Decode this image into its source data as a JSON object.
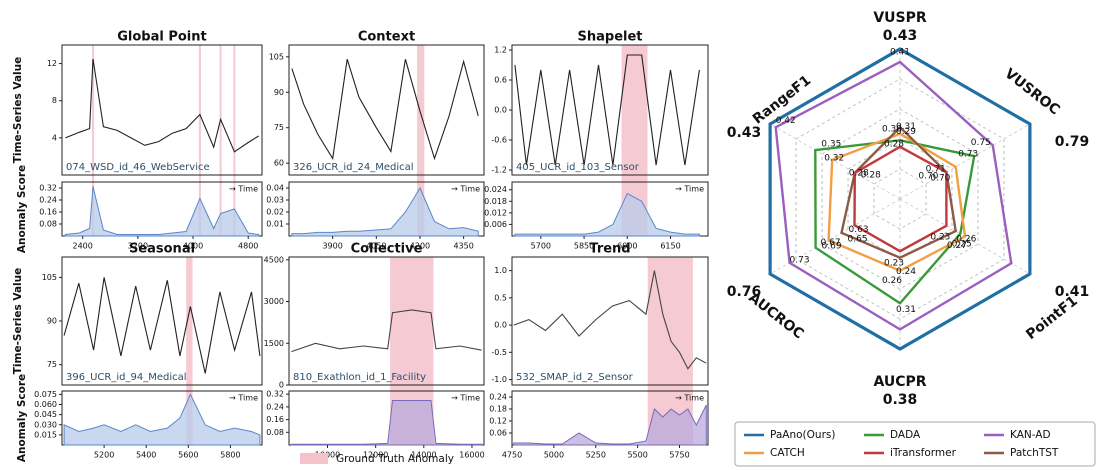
{
  "labels": {
    "series_axis": "Time-Series Value",
    "score_axis": "Anomaly Score",
    "time": "→ Time",
    "legend": "Ground Truth Anomaly"
  },
  "chart_data": [
    {
      "type": "line",
      "title": "Global Point",
      "dataset": "074_WSD_id_46_WebService",
      "x": [
        2150,
        2350,
        2500,
        2550,
        2700,
        2900,
        3100,
        3300,
        3500,
        3700,
        3900,
        4100,
        4300,
        4400,
        4600,
        4800,
        4950
      ],
      "values": [
        4,
        4.6,
        5,
        12.5,
        5.2,
        4.8,
        4,
        3.2,
        3.6,
        4.5,
        5,
        6.5,
        3,
        6,
        2.5,
        3.5,
        4.2
      ],
      "score_values": [
        0.01,
        0.02,
        0.05,
        0.33,
        0.04,
        0.01,
        0.01,
        0.01,
        0.01,
        0.02,
        0.03,
        0.25,
        0.05,
        0.15,
        0.18,
        0.02,
        0.01
      ],
      "xlim": [
        2100,
        5000
      ],
      "xticks": [
        2400,
        3200,
        4000,
        4800
      ],
      "ylim": [
        0,
        14
      ],
      "yticks": [
        4,
        8,
        12
      ],
      "score_ylim": [
        0,
        0.36
      ],
      "score_yticks": [
        0.08,
        0.16,
        0.24,
        0.32
      ],
      "anomalies": [
        [
          2535,
          2565
        ],
        [
          4085,
          4115
        ],
        [
          4385,
          4415
        ],
        [
          4585,
          4615
        ]
      ],
      "color": "#222222",
      "score_color": "#5b87c9",
      "score_fill": "#b7cbe9",
      "anomaly_color": "#f5c1cb"
    },
    {
      "type": "line",
      "title": "Context",
      "dataset": "326_UCR_id_24_Medical",
      "x": [
        3760,
        3800,
        3850,
        3900,
        3950,
        3990,
        4050,
        4100,
        4150,
        4200,
        4250,
        4300,
        4350,
        4400
      ],
      "values": [
        100,
        85,
        72,
        62,
        104,
        88,
        75,
        65,
        104,
        82,
        62,
        80,
        103,
        80
      ],
      "score_values": [
        0.002,
        0.002,
        0.003,
        0.003,
        0.004,
        0.004,
        0.005,
        0.006,
        0.02,
        0.04,
        0.012,
        0.006,
        0.007,
        0.004
      ],
      "xlim": [
        3750,
        4420
      ],
      "xticks": [
        3900,
        4050,
        4200,
        4350
      ],
      "ylim": [
        55,
        110
      ],
      "yticks": [
        60,
        75,
        90,
        105
      ],
      "score_ylim": [
        0,
        0.045
      ],
      "score_yticks": [
        0.01,
        0.02,
        0.03,
        0.04
      ],
      "anomalies": [
        [
          4190,
          4215
        ]
      ],
      "color": "#222222",
      "score_color": "#5b87c9",
      "score_fill": "#b7cbe9",
      "anomaly_color": "#f5c1cb"
    },
    {
      "type": "line",
      "title": "Shapelet",
      "dataset": "405_UCR_id_103_Sensor",
      "x": [
        5610,
        5650,
        5700,
        5750,
        5800,
        5850,
        5900,
        5950,
        6000,
        6050,
        6100,
        6150,
        6200,
        6250
      ],
      "values": [
        0.9,
        -1.1,
        0.8,
        -1.1,
        0.8,
        -1.1,
        0.9,
        -1.1,
        1.1,
        1.1,
        -1.1,
        0.8,
        -1.1,
        0.8
      ],
      "score_values": [
        0.001,
        0.001,
        0.001,
        0.001,
        0.001,
        0.001,
        0.002,
        0.006,
        0.022,
        0.018,
        0.004,
        0.002,
        0.001,
        0.001
      ],
      "xlim": [
        5600,
        6280
      ],
      "xticks": [
        5700,
        5850,
        6000,
        6150
      ],
      "ylim": [
        -1.3,
        1.3
      ],
      "yticks": [
        -1.2,
        -0.6,
        {
          "value": 0,
          "label": "0.0"
        },
        0.6,
        1.2
      ],
      "score_ylim": [
        0,
        0.028
      ],
      "score_yticks": [
        0.006,
        0.012,
        0.018,
        0.024
      ],
      "anomalies": [
        [
          5980,
          6070
        ]
      ],
      "color": "#222222",
      "score_color": "#5b87c9",
      "score_fill": "#b7cbe9",
      "anomaly_color": "#f5c1cb"
    },
    {
      "type": "line",
      "title": "Seasonal",
      "dataset": "396_UCR_id_94_Medical",
      "x": [
        5010,
        5080,
        5150,
        5200,
        5280,
        5350,
        5420,
        5500,
        5560,
        5610,
        5680,
        5750,
        5820,
        5900,
        5940
      ],
      "values": [
        85,
        103,
        80,
        105,
        78,
        102,
        80,
        104,
        78,
        95,
        72,
        100,
        80,
        100,
        78
      ],
      "score_values": [
        0.03,
        0.02,
        0.025,
        0.03,
        0.02,
        0.03,
        0.02,
        0.025,
        0.04,
        0.075,
        0.03,
        0.02,
        0.025,
        0.02,
        0.015
      ],
      "xlim": [
        5000,
        5950
      ],
      "xticks": [
        5200,
        5400,
        5600,
        5800
      ],
      "ylim": [
        68,
        112
      ],
      "yticks": [
        75,
        90,
        105
      ],
      "score_ylim": [
        0,
        0.08
      ],
      "score_yticks": [
        0.015,
        {
          "value": 0.03,
          "label": "0.030"
        },
        0.045,
        {
          "value": 0.06,
          "label": "0.060"
        },
        0.075
      ],
      "anomalies": [
        [
          5590,
          5620
        ]
      ],
      "color": "#222222",
      "score_color": "#5b87c9",
      "score_fill": "#b7cbe9",
      "anomaly_color": "#f5c1cb"
    },
    {
      "type": "line",
      "title": "Collective",
      "dataset": "810_Exathlon_id_1_Facility",
      "x": [
        8500,
        9500,
        10500,
        11500,
        12500,
        12700,
        13500,
        14300,
        14500,
        15500,
        16400
      ],
      "values": [
        1200,
        1500,
        1300,
        1400,
        1300,
        2600,
        2700,
        2600,
        1300,
        1400,
        1250
      ],
      "score_values": [
        0.005,
        0.005,
        0.005,
        0.005,
        0.01,
        0.28,
        0.28,
        0.28,
        0.01,
        0.005,
        0.005
      ],
      "xlim": [
        8400,
        16500
      ],
      "xticks": [
        10000,
        12000,
        14000,
        16000
      ],
      "ylim": [
        0,
        4600
      ],
      "yticks": [
        0,
        1500,
        3000,
        4500
      ],
      "score_ylim": [
        0,
        0.34
      ],
      "score_yticks": [
        0.08,
        0.16,
        0.24,
        0.32
      ],
      "anomalies": [
        [
          12600,
          14400
        ]
      ],
      "color": "#444444",
      "score_color": "#7a68b8",
      "score_fill": "#b9a9dc",
      "anomaly_color": "#f5c1cb"
    },
    {
      "type": "line",
      "title": "Trend",
      "dataset": "532_SMAP_id_2_Sensor",
      "x": [
        4760,
        4850,
        4950,
        5050,
        5150,
        5250,
        5350,
        5450,
        5550,
        5600,
        5650,
        5700,
        5750,
        5800,
        5850,
        5910
      ],
      "values": [
        0.0,
        0.1,
        -0.1,
        0.2,
        -0.2,
        0.1,
        0.35,
        0.45,
        0.2,
        1.0,
        0.2,
        -0.3,
        -0.5,
        -0.8,
        -0.6,
        -0.7
      ],
      "score_values": [
        0.01,
        0.01,
        0.005,
        0.005,
        0.06,
        0.01,
        0.005,
        0.005,
        0.02,
        0.18,
        0.14,
        0.18,
        0.15,
        0.18,
        0.1,
        0.2
      ],
      "xlim": [
        4750,
        5920
      ],
      "xticks": [
        4750,
        5000,
        5250,
        5500,
        5750
      ],
      "ylim": [
        -1.1,
        1.25
      ],
      "yticks": [
        {
          "value": -1,
          "label": "-1.0"
        },
        -0.5,
        {
          "value": 0,
          "label": "0.0"
        },
        0.5,
        {
          "value": 1,
          "label": "1.0"
        }
      ],
      "score_ylim": [
        0,
        0.27
      ],
      "score_yticks": [
        0.06,
        0.12,
        0.18,
        0.24
      ],
      "anomalies": [
        [
          5560,
          5830
        ]
      ],
      "color": "#444444",
      "score_color": "#7a68b8",
      "score_fill": "#b9a9dc",
      "anomaly_color": "#f5c1cb"
    },
    {
      "type": "radar",
      "axes": [
        "VUSPR",
        "VUSROC",
        "PointF1",
        "AUCPR",
        "AUCROC",
        "RangeF1"
      ],
      "rlim": [
        [
          0.2,
          0.43
        ],
        [
          0.65,
          0.79
        ],
        [
          0.13,
          0.41
        ],
        [
          0.15,
          0.38
        ],
        [
          0.56,
          0.76
        ],
        [
          0.2,
          0.43
        ]
      ],
      "highlight_axis": 0,
      "highlight_color": "#d62728",
      "series": [
        {
          "name": "PaAno(Ours)",
          "color": "#1f6fa5",
          "values": [
            0.43,
            0.79,
            0.41,
            0.38,
            0.76,
            0.43
          ]
        },
        {
          "name": "CATCH",
          "color": "#f0a040",
          "values": [
            0.3,
            0.71,
            0.27,
            0.26,
            0.67,
            0.32
          ],
          "value_labels": [
            "0.30",
            "0.71",
            "0.27",
            "0.26",
            "0.67",
            "0.32"
          ]
        },
        {
          "name": "DADA",
          "color": "#3a9a3a",
          "values": [
            0.29,
            0.73,
            0.26,
            0.31,
            0.69,
            0.35
          ],
          "value_labels": [
            "0.29",
            "0.73",
            "0.26",
            "0.31",
            "0.69",
            "0.35"
          ]
        },
        {
          "name": "iTransformer",
          "color": "#c0393b",
          "values": [
            0.28,
            0.7,
            0.23,
            0.23,
            0.63,
            0.28
          ],
          "value_labels": [
            "0.28",
            "0.70",
            "0.23",
            "0.23",
            "0.63",
            "0.28"
          ]
        },
        {
          "name": "KAN-AD",
          "color": "#9b5fc0",
          "values": [
            0.41,
            0.75,
            0.37,
            0.35,
            0.73,
            0.42
          ],
          "value_labels": [
            "0.41",
            "0.75",
            null,
            null,
            "0.73",
            "0.42"
          ]
        },
        {
          "name": "PatchTST",
          "color": "#8c5a45",
          "values": [
            0.31,
            0.7,
            0.25,
            0.24,
            0.65,
            0.28
          ],
          "value_labels": [
            "0.31",
            "0.70",
            "0.25",
            "0.24",
            "0.65",
            "0.28"
          ]
        }
      ]
    }
  ]
}
